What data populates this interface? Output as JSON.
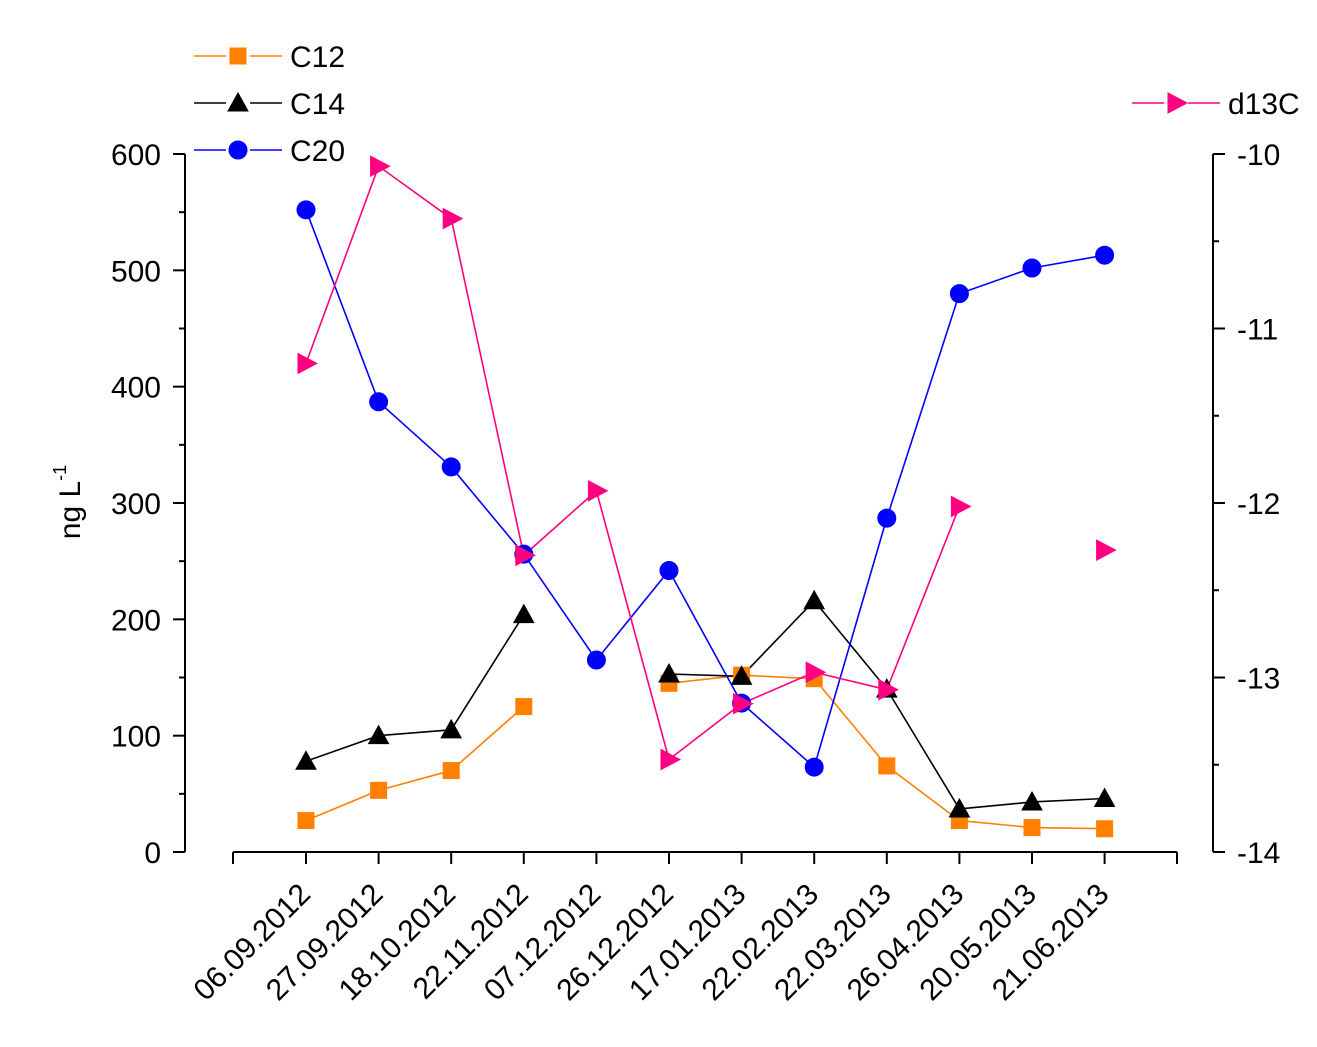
{
  "chart_data": {
    "type": "line",
    "categories": [
      "06.09.2012",
      "27.09.2012",
      "18.10.2012",
      "22.11.2012",
      "07.12.2012",
      "26.12.2012",
      "17.01.2013",
      "22.02.2013",
      "22.03.2013",
      "26.04.2013",
      "20.05.2013",
      "21.06.2013"
    ],
    "ylabel": "ng L",
    "ylabel_sup": "-1",
    "ylim": [
      0,
      600
    ],
    "yticks": [
      0,
      100,
      200,
      300,
      400,
      500,
      600
    ],
    "y2lim": [
      -14,
      -10
    ],
    "y2ticks": [
      -14,
      -13,
      -12,
      -11,
      -10
    ],
    "grid": false,
    "legend_left": "top-left",
    "legend_right": "top-right",
    "series": [
      {
        "name": "C12",
        "axis": "left",
        "marker": "square",
        "color": "#ff8000",
        "values": [
          27,
          53,
          70,
          125,
          null,
          145,
          152,
          149,
          74,
          27,
          21,
          20
        ]
      },
      {
        "name": "C14",
        "axis": "left",
        "marker": "triangle-up",
        "color": "#000000",
        "values": [
          78,
          100,
          105,
          204,
          null,
          153,
          151,
          216,
          140,
          37,
          43,
          46
        ]
      },
      {
        "name": "C20",
        "axis": "left",
        "marker": "circle",
        "color": "#0000ff",
        "values": [
          552,
          387,
          331,
          256,
          165,
          242,
          128,
          73,
          287,
          480,
          502,
          513
        ]
      },
      {
        "name": "d13C",
        "axis": "right",
        "marker": "triangle-right",
        "color": "#ff0080",
        "values": [
          -11.2,
          -10.07,
          -10.37,
          -12.3,
          -11.93,
          -13.47,
          -13.15,
          -12.97,
          -13.07,
          -12.02,
          null,
          -12.27
        ]
      }
    ]
  }
}
